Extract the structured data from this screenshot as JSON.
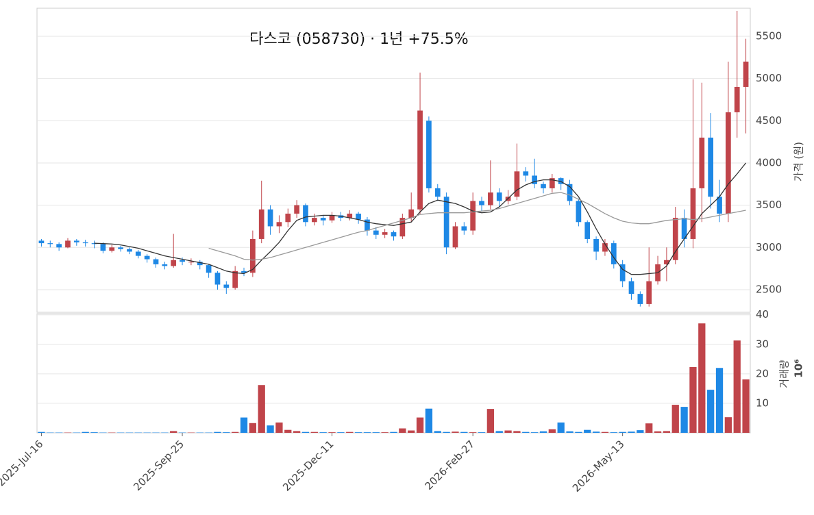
{
  "chart_data": {
    "type": "candlestick",
    "title": "다스코 (058730)  ·  1년 +75.5%",
    "ylabel": "가격 (원)",
    "y2label": "거래량",
    "y2unit": "10⁶",
    "categories": [
      "2025-Jul-16",
      null,
      null,
      null,
      null,
      null,
      null,
      null,
      null,
      null,
      null,
      null,
      null,
      null,
      null,
      null,
      "2025-Sep-25",
      null,
      null,
      null,
      null,
      null,
      null,
      null,
      null,
      null,
      null,
      null,
      null,
      null,
      null,
      null,
      null,
      "2025-Dec-11",
      null,
      null,
      null,
      null,
      null,
      null,
      null,
      null,
      null,
      null,
      null,
      null,
      null,
      null,
      null,
      "2026-Feb-27",
      null,
      null,
      null,
      null,
      null,
      null,
      null,
      null,
      null,
      null,
      null,
      null,
      null,
      null,
      null,
      null,
      "2026-May-13",
      null,
      null,
      null,
      null,
      null,
      null,
      null,
      null,
      null,
      null,
      null,
      null,
      null,
      null
    ],
    "open": [
      3080,
      3050,
      3040,
      3000,
      3080,
      3060,
      3050,
      3040,
      2960,
      3000,
      2980,
      2950,
      2900,
      2860,
      2800,
      2780,
      2850,
      2830,
      2830,
      2790,
      2700,
      2560,
      2520,
      2720,
      2700,
      3100,
      3450,
      3250,
      3300,
      3400,
      3500,
      3300,
      3350,
      3320,
      3380,
      3350,
      3400,
      3330,
      3200,
      3150,
      3180,
      3130,
      3350,
      3450,
      4500,
      3700,
      3600,
      3000,
      3250,
      3200,
      3550,
      3500,
      3650,
      3550,
      3600,
      3900,
      3850,
      3750,
      3700,
      3820,
      3750,
      3550,
      3300,
      3100,
      2950,
      3050,
      2800,
      2600,
      2450,
      2330,
      2600,
      2800,
      2850,
      3350,
      3100,
      3700,
      4300,
      3600,
      3400,
      4600,
      4900
    ],
    "high": [
      3100,
      3080,
      3060,
      3110,
      3100,
      3090,
      3080,
      3060,
      3030,
      3020,
      3000,
      2970,
      2920,
      2880,
      2830,
      3160,
      2880,
      2870,
      2850,
      2800,
      2720,
      2600,
      2780,
      2760,
      3200,
      3790,
      3500,
      3380,
      3460,
      3560,
      3520,
      3400,
      3380,
      3420,
      3420,
      3440,
      3420,
      3360,
      3240,
      3220,
      3200,
      3400,
      3650,
      5070,
      4550,
      3750,
      3650,
      3300,
      3300,
      3650,
      3600,
      4030,
      3700,
      3680,
      4230,
      3950,
      4050,
      3780,
      3870,
      3830,
      3800,
      3580,
      3320,
      3130,
      3100,
      3080,
      2850,
      2640,
      2480,
      3000,
      2900,
      3000,
      3480,
      3450,
      4990,
      4950,
      4590,
      3800,
      5200,
      5800,
      5470
    ],
    "low": [
      3010,
      3000,
      2960,
      2990,
      3020,
      3010,
      2990,
      2930,
      2940,
      2950,
      2920,
      2870,
      2820,
      2760,
      2740,
      2760,
      2790,
      2790,
      2740,
      2640,
      2500,
      2450,
      2500,
      2660,
      2650,
      3050,
      3150,
      3170,
      3240,
      3350,
      3250,
      3260,
      3260,
      3290,
      3310,
      3320,
      3280,
      3140,
      3100,
      3110,
      3080,
      3100,
      3300,
      3400,
      3650,
      3550,
      2920,
      2980,
      3150,
      3150,
      3430,
      3450,
      3480,
      3510,
      3560,
      3780,
      3700,
      3640,
      3650,
      3680,
      3500,
      3250,
      3050,
      2850,
      2900,
      2750,
      2530,
      2380,
      2300,
      2300,
      2560,
      2600,
      2800,
      3000,
      2990,
      3300,
      3460,
      3300,
      3300,
      4300,
      4350
    ],
    "close": [
      3050,
      3040,
      3000,
      3080,
      3060,
      3050,
      3040,
      2960,
      3000,
      2980,
      2950,
      2900,
      2860,
      2800,
      2780,
      2850,
      2830,
      2830,
      2790,
      2700,
      2560,
      2520,
      2720,
      2700,
      3100,
      3450,
      3250,
      3300,
      3400,
      3500,
      3300,
      3350,
      3320,
      3380,
      3350,
      3400,
      3330,
      3200,
      3150,
      3180,
      3130,
      3350,
      3450,
      4620,
      3700,
      3600,
      3000,
      3250,
      3200,
      3550,
      3500,
      3650,
      3550,
      3600,
      3900,
      3850,
      3750,
      3700,
      3820,
      3750,
      3550,
      3300,
      3100,
      2950,
      3050,
      2800,
      2600,
      2450,
      2330,
      2600,
      2800,
      2850,
      3350,
      3100,
      3700,
      4300,
      3600,
      3400,
      4600,
      4900,
      5200
    ],
    "volume": [
      0.3,
      0.1,
      0.1,
      0.1,
      0.1,
      0.3,
      0.2,
      0.1,
      0.1,
      0.1,
      0.1,
      0.1,
      0.1,
      0.1,
      0.1,
      0.6,
      0.1,
      0.1,
      0.1,
      0.1,
      0.3,
      0.2,
      0.3,
      5.2,
      3.3,
      16.2,
      2.5,
      3.5,
      1,
      0.6,
      0.3,
      0.3,
      0.2,
      0.2,
      0.2,
      0.3,
      0.2,
      0.2,
      0.2,
      0.2,
      0.3,
      1.5,
      0.8,
      5.2,
      8.2,
      0.6,
      0.3,
      0.4,
      0.3,
      0.2,
      0.2,
      8.1,
      0.6,
      0.8,
      0.6,
      0.3,
      0.2,
      0.5,
      1.2,
      3.5,
      0.5,
      0.3,
      1,
      0.4,
      0.3,
      0.2,
      0.3,
      0.4,
      0.9,
      3.2,
      0.5,
      0.6,
      9.5,
      8.8,
      22.3,
      37.1,
      14.6,
      22,
      5.3,
      31.3,
      18.1
    ],
    "ma": [
      {
        "color": "#333333",
        "values": [
          null,
          null,
          null,
          null,
          null,
          null,
          3050,
          3045,
          3040,
          3030,
          3010,
          2990,
          2960,
          2930,
          2900,
          2880,
          2860,
          2840,
          2820,
          2800,
          2760,
          2720,
          2700,
          2690,
          2740,
          2850,
          2950,
          3060,
          3200,
          3320,
          3360,
          3370,
          3380,
          3380,
          3370,
          3350,
          3330,
          3300,
          3280,
          3270,
          3260,
          3280,
          3300,
          3420,
          3520,
          3560,
          3540,
          3520,
          3480,
          3430,
          3410,
          3420,
          3480,
          3580,
          3680,
          3740,
          3780,
          3800,
          3800,
          3780,
          3720,
          3600,
          3420,
          3220,
          3040,
          2880,
          2740,
          2680,
          2680,
          2690,
          2700,
          2780,
          2950,
          3100,
          3250,
          3400,
          3500,
          3600,
          3750,
          3870,
          4000
        ]
      },
      {
        "color": "#999999",
        "values": [
          null,
          null,
          null,
          null,
          null,
          null,
          null,
          null,
          null,
          null,
          null,
          null,
          null,
          null,
          null,
          null,
          null,
          null,
          null,
          2990,
          2960,
          2930,
          2900,
          2860,
          2850,
          2860,
          2880,
          2910,
          2940,
          2970,
          3000,
          3030,
          3060,
          3090,
          3120,
          3150,
          3180,
          3200,
          3230,
          3260,
          3290,
          3320,
          3350,
          3390,
          3400,
          3410,
          3410,
          3410,
          3410,
          3420,
          3430,
          3440,
          3460,
          3490,
          3520,
          3550,
          3580,
          3610,
          3640,
          3650,
          3620,
          3570,
          3520,
          3460,
          3400,
          3350,
          3310,
          3290,
          3280,
          3280,
          3300,
          3320,
          3330,
          3340,
          3330,
          3340,
          3360,
          3380,
          3400,
          3420,
          3440
        ]
      }
    ],
    "colors": {
      "up": "#c0444a",
      "down": "#1e88e5"
    },
    "ylim": [
      2232,
      5832
    ],
    "yticks": [
      2500,
      3000,
      3500,
      4000,
      4500,
      5000,
      5500
    ],
    "y2lim": [
      0,
      40.4
    ],
    "y2ticks": [
      10,
      20,
      30,
      40
    ],
    "grid": true
  }
}
